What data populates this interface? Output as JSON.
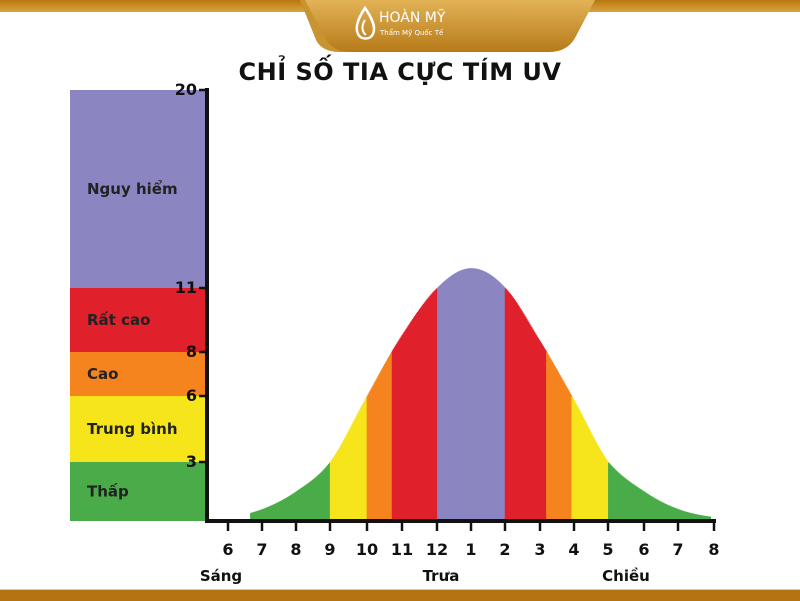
{
  "brand": {
    "name": "HOÀN MỸ",
    "tagline": "Thẩm Mỹ Quốc Tế",
    "gold": "#c68a1e"
  },
  "chart_data": {
    "type": "area",
    "title": "CHỈ SỐ TIA CỰC TÍM UV",
    "x": [
      "6",
      "7",
      "8",
      "9",
      "10",
      "11",
      "12",
      "1",
      "2",
      "3",
      "4",
      "5",
      "6",
      "7",
      "8"
    ],
    "values": [
      0.2,
      0.6,
      1.5,
      3,
      6,
      8.8,
      11,
      11.9,
      11,
      8.5,
      5.8,
      3,
      1.5,
      0.6,
      0.2
    ],
    "period_labels": [
      "Sáng",
      "Trưa",
      "Chiều"
    ],
    "yticks": [
      3,
      6,
      8,
      11,
      20
    ],
    "ylim": [
      0,
      20
    ],
    "levels": [
      {
        "label": "Thấp",
        "from": 0,
        "to": 3,
        "color": "#4aac48"
      },
      {
        "label": "Trung bình",
        "from": 3,
        "to": 6,
        "color": "#f6e51a"
      },
      {
        "label": "Cao",
        "from": 6,
        "to": 8,
        "color": "#f5841f"
      },
      {
        "label": "Rất cao",
        "from": 8,
        "to": 11,
        "color": "#e0202a"
      },
      {
        "label": "Nguy hiểm",
        "from": 11,
        "to": 20,
        "color": "#8b86c1"
      }
    ]
  }
}
